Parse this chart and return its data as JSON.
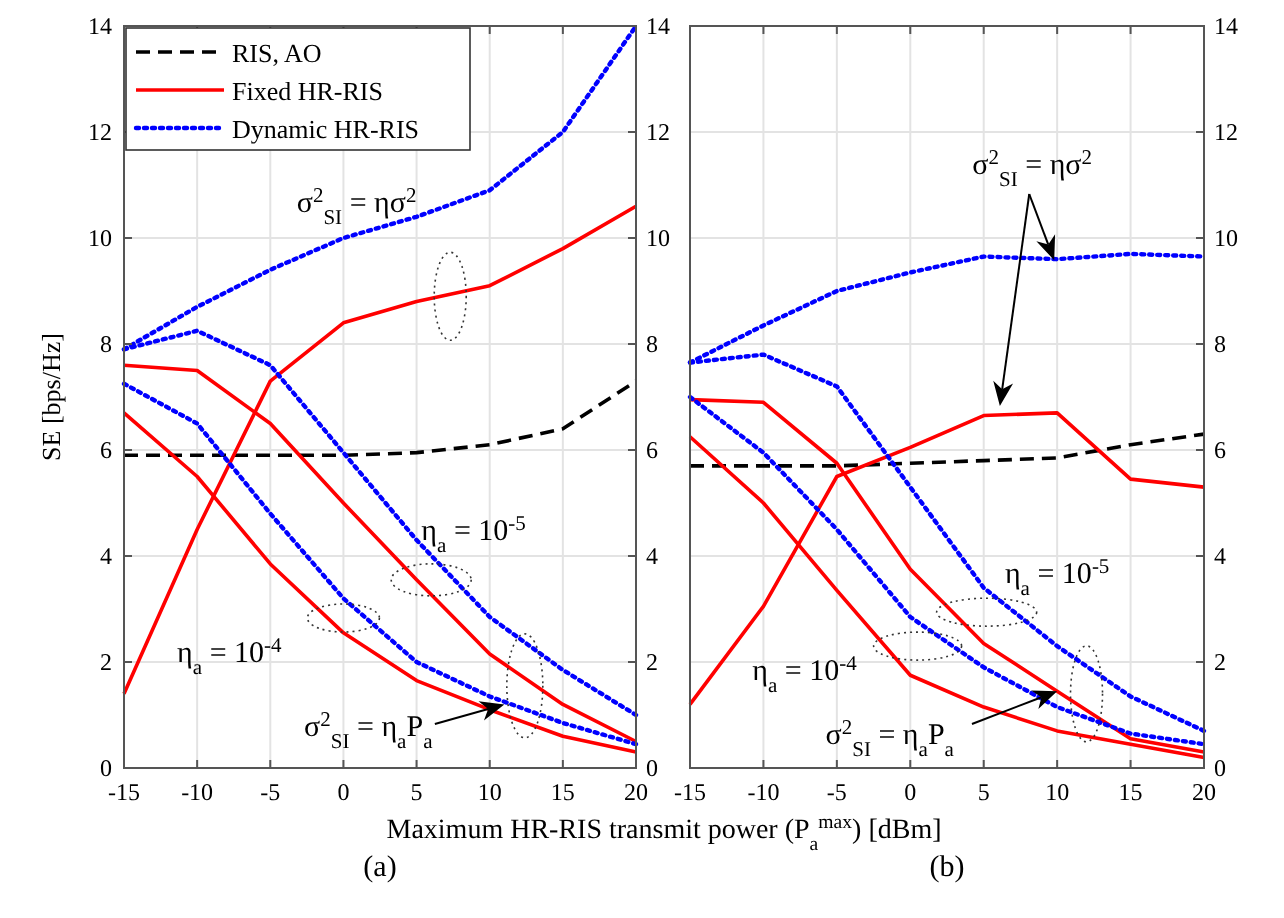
{
  "chart_data": [
    {
      "type": "line",
      "xlabel": "Maximum HR-RIS transmit power (P$_{a}$$^{max}$) [dBm]",
      "ylabel": "SE [bps/Hz]",
      "x": [
        -15,
        -10,
        -5,
        0,
        5,
        10,
        15,
        20
      ],
      "xlim": [
        -15,
        20
      ],
      "xticks": [
        -15,
        -10,
        -5,
        0,
        5,
        10,
        15,
        20
      ],
      "ylim": [
        0,
        14
      ],
      "yticks": [
        0,
        2,
        4,
        6,
        8,
        10,
        12,
        14
      ],
      "y2lim": [
        0,
        14
      ],
      "y2ticks": [
        0,
        2,
        4,
        6,
        8,
        10,
        12,
        14
      ],
      "grid": true,
      "legend": "top left",
      "marker": "none",
      "annotations": [
        "σ$^{2}$$_{SI}$ = ησ$^{2}$",
        "η$_{a}$ = 10$^{-5}$",
        "η$_{a}$ = 10$^{-4}$",
        {
          "text": "σ$^{2}$$_{SI}$ = η$_{a}$P$_{a}$",
          "x": 11,
          "y": 1.2
        },
        "(a)"
      ],
      "series": [
        {
          "name": "RIS, AO",
          "color": "#000000",
          "line_style": "dashed",
          "values": [
            5.9,
            5.9,
            5.9,
            5.9,
            5.95,
            6.1,
            6.4,
            7.3
          ]
        },
        {
          "name": "Fixed HR-RIS",
          "color": "#ff0000",
          "line_style": "solid",
          "values": [
            1.4,
            4.5,
            7.3,
            8.4,
            8.8,
            9.1,
            9.8,
            10.6
          ]
        },
        {
          "name": "Dynamic HR-RIS",
          "color": "#0000ff",
          "line_style": "dotted",
          "values": [
            7.9,
            8.7,
            9.4,
            10.0,
            10.4,
            10.9,
            12.0,
            14.0
          ]
        },
        {
          "color": "#ff0000",
          "line_style": "solid",
          "values": [
            7.6,
            7.5,
            6.5,
            5.0,
            3.55,
            2.15,
            1.2,
            0.5
          ]
        },
        {
          "color": "#ff0000",
          "line_style": "solid",
          "values": [
            6.7,
            5.5,
            3.85,
            2.55,
            1.65,
            1.1,
            0.6,
            0.3
          ]
        },
        {
          "color": "#0000ff",
          "line_style": "dotted",
          "values": [
            7.9,
            8.25,
            7.6,
            5.95,
            4.3,
            2.85,
            1.85,
            1.0
          ]
        },
        {
          "color": "#0000ff",
          "line_style": "dotted",
          "values": [
            7.25,
            6.5,
            4.8,
            3.2,
            2.0,
            1.35,
            0.85,
            0.45
          ]
        }
      ]
    },
    {
      "type": "line",
      "x": [
        -15,
        -10,
        -5,
        0,
        5,
        10,
        15,
        20
      ],
      "xlim": [
        -15,
        20
      ],
      "xticks": [
        -15,
        -10,
        -5,
        0,
        5,
        10,
        15,
        20
      ],
      "ylim": [
        0,
        14
      ],
      "yticks": [
        0,
        2,
        4,
        6,
        8,
        10,
        12,
        14
      ],
      "grid": true,
      "marker": "none",
      "annotations": [
        "σ$^{2}$$_{SI}$ = ησ$^{2}$",
        "η$_{a}$ = 10$^{-5}$",
        "η$_{a}$ = 10$^{-4}$",
        {
          "text": "σ$^{2}$$_{SI}$ = η$_{a}$P$_{a}$",
          "x": 10,
          "y": 1.45
        },
        "(b)"
      ],
      "series": [
        {
          "color": "#000000",
          "line_style": "dashed",
          "values": [
            5.7,
            5.7,
            5.7,
            5.75,
            5.8,
            5.85,
            6.1,
            6.3
          ]
        },
        {
          "color": "#ff0000",
          "line_style": "solid",
          "values": [
            1.2,
            3.05,
            5.5,
            6.05,
            6.65,
            6.7,
            5.45,
            5.3
          ]
        },
        {
          "color": "#0000ff",
          "line_style": "dotted",
          "values": [
            7.65,
            8.35,
            9.0,
            9.35,
            9.65,
            9.6,
            9.7,
            9.65
          ]
        },
        {
          "color": "#ff0000",
          "line_style": "solid",
          "values": [
            6.95,
            6.9,
            5.75,
            3.75,
            2.35,
            1.45,
            0.55,
            0.3
          ]
        },
        {
          "color": "#ff0000",
          "line_style": "solid",
          "values": [
            6.25,
            5.0,
            3.35,
            1.75,
            1.15,
            0.7,
            0.45,
            0.2
          ]
        },
        {
          "color": "#0000ff",
          "line_style": "dotted",
          "values": [
            7.65,
            7.8,
            7.2,
            5.3,
            3.4,
            2.3,
            1.35,
            0.7
          ]
        },
        {
          "color": "#0000ff",
          "line_style": "dotted",
          "values": [
            7.0,
            5.95,
            4.5,
            2.85,
            1.9,
            1.15,
            0.65,
            0.45
          ]
        }
      ]
    }
  ]
}
